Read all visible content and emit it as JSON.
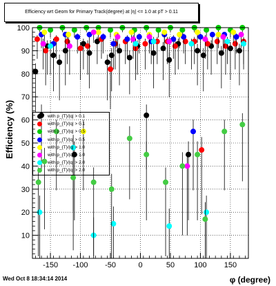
{
  "title": "Efficiency wrt Geom for Primary Track(degree) at |η| <= 1.0 at pT > 0.11",
  "timestamp": "Wed Oct  8 18:34:14 2014",
  "chart_data": {
    "type": "scatter",
    "xlabel": "φ (degree)",
    "ylabel": "Efficiency (%)",
    "xlim": [
      -180,
      180
    ],
    "ylim": [
      0,
      100
    ],
    "xticks": [
      -150,
      -100,
      -50,
      0,
      50,
      100,
      150
    ],
    "yticks": [
      10,
      20,
      30,
      40,
      50,
      60,
      70,
      80,
      90,
      100
    ],
    "grid": true,
    "legend_position": "left-middle",
    "series": [
      {
        "name": "with p_{T}/|q| > 0.1",
        "color": "#000000",
        "points": [
          [
            -175,
            81
          ],
          [
            -165,
            62
          ],
          [
            -155,
            92
          ],
          [
            -145,
            88
          ],
          [
            -135,
            85
          ],
          [
            -125,
            90
          ],
          [
            -110,
            45
          ],
          [
            -95,
            93
          ],
          [
            -85,
            89
          ],
          [
            -72,
            94
          ],
          [
            -55,
            85
          ],
          [
            -48,
            88
          ],
          [
            -35,
            90
          ],
          [
            -18,
            87
          ],
          [
            -5,
            92
          ],
          [
            10,
            62
          ],
          [
            22,
            89
          ],
          [
            38,
            91
          ],
          [
            48,
            86
          ],
          [
            63,
            93
          ],
          [
            80,
            45
          ],
          [
            95,
            90
          ],
          [
            105,
            88
          ],
          [
            118,
            92
          ],
          [
            135,
            89
          ],
          [
            150,
            91
          ],
          [
            165,
            90
          ]
        ]
      },
      {
        "name": "with p_{T}/|q| > 0.1",
        "color": "#ff0000",
        "points": [
          [
            -172,
            95
          ],
          [
            -158,
            90
          ],
          [
            -140,
            95
          ],
          [
            -122,
            94
          ],
          [
            -100,
            91
          ],
          [
            -88,
            92
          ],
          [
            -65,
            95
          ],
          [
            -50,
            82
          ],
          [
            -42,
            93
          ],
          [
            -25,
            94
          ],
          [
            -8,
            91
          ],
          [
            8,
            93
          ],
          [
            28,
            94
          ],
          [
            45,
            94
          ],
          [
            58,
            92
          ],
          [
            75,
            94
          ],
          [
            90,
            94
          ],
          [
            102,
            47
          ],
          [
            112,
            93
          ],
          [
            128,
            94
          ],
          [
            142,
            92
          ],
          [
            158,
            93
          ],
          [
            172,
            94
          ]
        ]
      },
      {
        "name": "with p_{T}/|q| > 0.5",
        "color": "#00cc00",
        "points": [
          [
            -168,
            100
          ],
          [
            -150,
            99
          ],
          [
            -130,
            100
          ],
          [
            -110,
            99
          ],
          [
            -90,
            100
          ],
          [
            -70,
            100
          ],
          [
            -50,
            99
          ],
          [
            -30,
            100
          ],
          [
            -10,
            99
          ],
          [
            10,
            100
          ],
          [
            30,
            99
          ],
          [
            50,
            100
          ],
          [
            70,
            99
          ],
          [
            90,
            100
          ],
          [
            110,
            99
          ],
          [
            130,
            100
          ],
          [
            150,
            99
          ],
          [
            170,
            100
          ]
        ]
      },
      {
        "name": "with p_{T}/|q| > 0.5",
        "color": "#0000ff",
        "points": [
          [
            -165,
            97
          ],
          [
            -145,
            93
          ],
          [
            -125,
            97
          ],
          [
            -105,
            96
          ],
          [
            -85,
            97
          ],
          [
            -62,
            96
          ],
          [
            -45,
            93
          ],
          [
            -22,
            95
          ],
          [
            -2,
            96
          ],
          [
            18,
            94
          ],
          [
            40,
            97
          ],
          [
            55,
            95
          ],
          [
            72,
            96
          ],
          [
            88,
            55
          ],
          [
            100,
            96
          ],
          [
            120,
            97
          ],
          [
            140,
            97
          ],
          [
            160,
            96
          ]
        ]
      },
      {
        "name": "with p_{T}/|q| > 1.0",
        "color": "#ffff00",
        "points": [
          [
            -160,
            98
          ],
          [
            -120,
            97
          ],
          [
            -95,
            55
          ],
          [
            -70,
            98
          ],
          [
            -40,
            97
          ],
          [
            -15,
            98
          ],
          [
            15,
            97
          ],
          [
            40,
            98
          ],
          [
            65,
            97
          ],
          [
            95,
            98
          ],
          [
            130,
            97
          ],
          [
            155,
            98
          ]
        ]
      },
      {
        "name": "with p_{T}/|q| > 1.0",
        "color": "#ff00ff",
        "points": [
          [
            -162,
            93
          ],
          [
            -118,
            92
          ],
          [
            -78,
            98
          ],
          [
            -38,
            96
          ],
          [
            -12,
            95
          ],
          [
            15,
            96
          ],
          [
            48,
            94
          ],
          [
            78,
            40
          ],
          [
            108,
            95
          ],
          [
            138,
            96
          ],
          [
            168,
            97
          ]
        ]
      },
      {
        "name": "with p_{T}/|q| > 2.0",
        "color": "#00ffff",
        "points": [
          [
            -168,
            20
          ],
          [
            -150,
            92
          ],
          [
            -112,
            48
          ],
          [
            -78,
            10
          ],
          [
            -45,
            15
          ],
          [
            -8,
            93
          ],
          [
            22,
            94
          ],
          [
            48,
            14
          ],
          [
            85,
            93
          ],
          [
            110,
            20
          ],
          [
            145,
            94
          ],
          [
            172,
            93
          ]
        ]
      },
      {
        "name": "with p_{T}/|q| > 2.0",
        "color": "#44cc44",
        "points": [
          [
            -170,
            33
          ],
          [
            -160,
            42
          ],
          [
            -140,
            55
          ],
          [
            -112,
            35
          ],
          [
            -78,
            33
          ],
          [
            -48,
            30
          ],
          [
            -18,
            52
          ],
          [
            10,
            45
          ],
          [
            42,
            33
          ],
          [
            70,
            40
          ],
          [
            95,
            45
          ],
          [
            108,
            17
          ],
          [
            140,
            55
          ],
          [
            170,
            58
          ]
        ]
      }
    ]
  }
}
